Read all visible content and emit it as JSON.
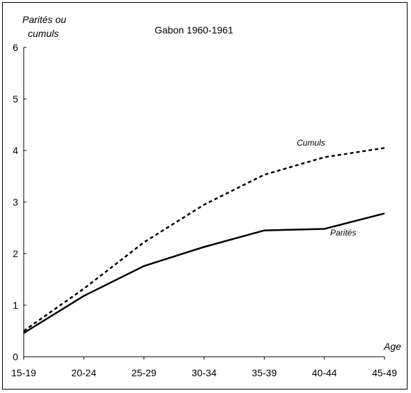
{
  "chart_data": {
    "type": "line",
    "title": "Gabon 1960-1961",
    "ylabel_line1": "Parités ou",
    "ylabel_line2": "cumuls",
    "xlabel": "Age",
    "ylim": [
      0,
      6
    ],
    "yticks": [
      "0",
      "1",
      "2",
      "3",
      "4",
      "5",
      "6"
    ],
    "categories": [
      "15-19",
      "20-24",
      "25-29",
      "30-34",
      "35-39",
      "40-44",
      "45-49"
    ],
    "grid": false,
    "series": [
      {
        "name": "Cumuls",
        "style": "dashed",
        "values": [
          0.5,
          1.32,
          2.22,
          2.95,
          3.53,
          3.87,
          4.05
        ]
      },
      {
        "name": "Parités",
        "style": "solid",
        "values": [
          0.46,
          1.18,
          1.76,
          2.13,
          2.45,
          2.48,
          2.78
        ]
      }
    ]
  }
}
